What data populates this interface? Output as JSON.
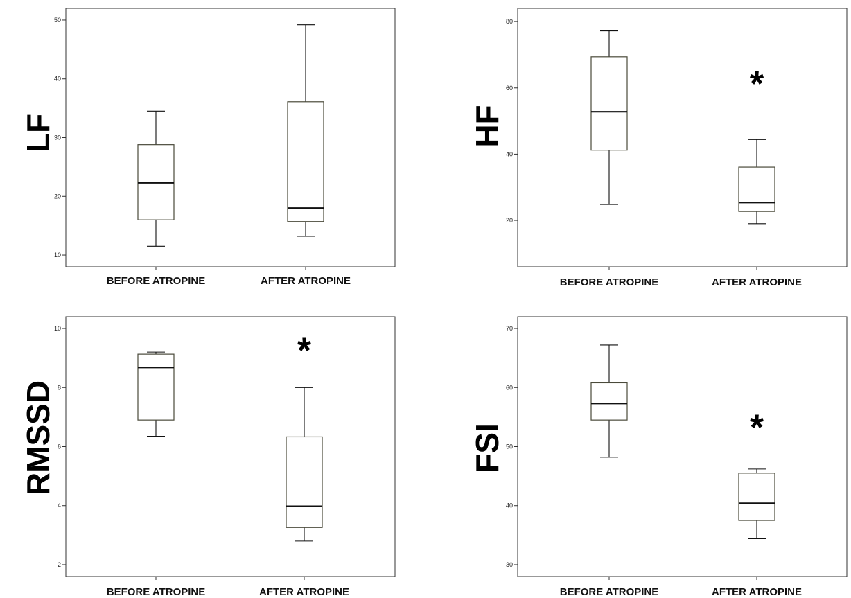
{
  "chart_data": [
    {
      "type": "box",
      "ylabel": "LF",
      "categories": [
        "BEFORE ATROPINE",
        "AFTER ATROPINE"
      ],
      "yticks": [
        10,
        20,
        30,
        40,
        50
      ],
      "ylim": [
        8,
        52
      ],
      "series": [
        {
          "category": "BEFORE ATROPINE",
          "min": 11.5,
          "q1": 16.0,
          "median": 22.3,
          "q3": 28.8,
          "max": 34.5
        },
        {
          "category": "AFTER ATROPINE",
          "min": 13.2,
          "q1": 15.7,
          "median": 18.0,
          "q3": 36.1,
          "max": 49.2
        }
      ],
      "annotations": []
    },
    {
      "type": "box",
      "ylabel": "HF",
      "categories": [
        "BEFORE ATROPINE",
        "AFTER ATROPINE"
      ],
      "yticks": [
        20,
        40,
        60,
        80
      ],
      "ylim": [
        6,
        84
      ],
      "series": [
        {
          "category": "BEFORE ATROPINE",
          "min": 24.8,
          "q1": 41.2,
          "median": 52.8,
          "q3": 69.4,
          "max": 77.2
        },
        {
          "category": "AFTER ATROPINE",
          "min": 19.0,
          "q1": 22.7,
          "median": 25.4,
          "q3": 36.1,
          "max": 44.4
        }
      ],
      "annotations": [
        {
          "category": "AFTER ATROPINE",
          "text": "*",
          "y": 63
        }
      ]
    },
    {
      "type": "box",
      "ylabel": "RMSSD",
      "categories": [
        "BEFORE ATROPINE",
        "AFTER ATROPINE"
      ],
      "yticks": [
        2,
        4,
        6,
        8,
        10
      ],
      "ylim": [
        1.6,
        10.4
      ],
      "series": [
        {
          "category": "BEFORE ATROPINE",
          "min": 6.35,
          "q1": 6.9,
          "median": 8.68,
          "q3": 9.13,
          "max": 9.2
        },
        {
          "category": "AFTER ATROPINE",
          "min": 2.8,
          "q1": 3.26,
          "median": 3.98,
          "q3": 6.33,
          "max": 8.0
        }
      ],
      "annotations": [
        {
          "category": "AFTER ATROPINE",
          "text": "*",
          "y": 9.45
        }
      ]
    },
    {
      "type": "box",
      "ylabel": "FSI",
      "categories": [
        "BEFORE ATROPINE",
        "AFTER ATROPINE"
      ],
      "yticks": [
        30,
        40,
        50,
        60,
        70
      ],
      "ylim": [
        28,
        72
      ],
      "series": [
        {
          "category": "BEFORE ATROPINE",
          "min": 48.2,
          "q1": 54.5,
          "median": 57.3,
          "q3": 60.8,
          "max": 67.2
        },
        {
          "category": "AFTER ATROPINE",
          "min": 34.4,
          "q1": 37.5,
          "median": 40.4,
          "q3": 45.5,
          "max": 46.2
        }
      ],
      "annotations": [
        {
          "category": "AFTER ATROPINE",
          "text": "*",
          "y": 54.2
        }
      ]
    }
  ]
}
